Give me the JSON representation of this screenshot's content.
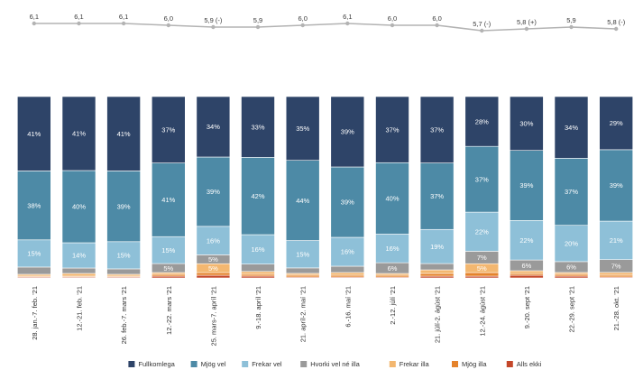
{
  "chart_data": [
    {
      "type": "line",
      "categories": [
        "28. jan.-7. feb. '21",
        "12.-21. feb. '21",
        "26. feb.-7. mars '21",
        "12.-22. mars '21",
        "25. mars-7. apríl '21",
        "9.-18. apríl '21",
        "21. apríl-2. maí '21",
        "6.-16. maí '21",
        "2.-12. júlí '21",
        "21. júlí-2. ágúst '21",
        "12.-24. ágúst '21",
        "9.-20. sept '21",
        "22.-29. sept '21",
        "21.-28. okt. '21"
      ],
      "values": [
        6.1,
        6.1,
        6.1,
        6.0,
        5.9,
        5.9,
        6.0,
        6.1,
        6.0,
        6.0,
        5.7,
        5.8,
        5.9,
        5.8
      ],
      "labels": [
        "6,1",
        "6,1",
        "6,1",
        "6,0",
        "5,9 (-)",
        "5,9",
        "6,0",
        "6,1",
        "6,0",
        "6,0",
        "5,7 (-)",
        "5,8 (+)",
        "5,9",
        "5,8 (-)"
      ],
      "ylim": [
        5.5,
        6.3
      ],
      "grid": false,
      "color": "#b3b3b3"
    },
    {
      "type": "bar",
      "stacked": true,
      "percent": true,
      "categories": [
        "28. jan.-7. feb. '21",
        "12.-21. feb. '21",
        "26. feb.-7. mars '21",
        "12.-22. mars '21",
        "25. mars-7. apríl '21",
        "9.-18. apríl '21",
        "21. apríl-2. maí '21",
        "6.-16. maí '21",
        "2.-12. júlí '21",
        "21. júlí-2. ágúst '21",
        "12.-24. ágúst '21",
        "9.-20. sept '21",
        "22.-29. sept '21",
        "21.-28. okt. '21"
      ],
      "ylim": [
        0,
        100
      ],
      "grid": false,
      "legend": "bottom",
      "series": [
        {
          "name": "Alls ekki",
          "color": "#c4472a",
          "values": [
            0.5,
            0.5,
            0.5,
            1,
            1.5,
            1,
            0.5,
            0.5,
            0.5,
            1,
            1,
            1.5,
            1,
            0.5
          ],
          "labels": [
            "",
            "",
            "",
            "",
            "",
            "",
            "",
            "",
            "",
            "",
            "",
            "",
            "",
            ""
          ]
        },
        {
          "name": "Mjög illa",
          "color": "#e5832b",
          "values": [
            0.5,
            0.5,
            0.5,
            1,
            1.5,
            1,
            1,
            1,
            1,
            1.5,
            2,
            1,
            1,
            1
          ],
          "labels": [
            "",
            "",
            "",
            "",
            "",
            "",
            "",
            "",
            "",
            "",
            "",
            "",
            "",
            ""
          ]
        },
        {
          "name": "Frekar illa",
          "color": "#f3b770",
          "values": [
            1,
            1.5,
            1,
            1,
            5,
            1.5,
            1,
            1.5,
            1,
            2,
            5,
            1.5,
            1,
            1.5
          ],
          "labels": [
            "",
            "",
            "",
            "",
            "5%",
            "",
            "",
            "",
            "",
            "",
            "5%",
            "",
            "",
            ""
          ]
        },
        {
          "name": "Hvorki vel né illa",
          "color": "#9a9a9a",
          "values": [
            4,
            3,
            3,
            5,
            5,
            4,
            3,
            3.5,
            6,
            3.5,
            7,
            6,
            6,
            7
          ],
          "labels": [
            "",
            "",
            "",
            "5%",
            "5%",
            "",
            "",
            "",
            "6%",
            "",
            "7%",
            "6%",
            "6%",
            "7%"
          ]
        },
        {
          "name": "Frekar vel",
          "color": "#8ec0d8",
          "values": [
            15,
            14,
            15,
            15,
            16,
            16,
            15,
            16,
            16,
            19,
            22,
            22,
            20,
            21
          ],
          "labels": [
            "15%",
            "14%",
            "15%",
            "15%",
            "16%",
            "16%",
            "15%",
            "16%",
            "16%",
            "19%",
            "22%",
            "22%",
            "20%",
            "21%"
          ]
        },
        {
          "name": "Mjög vel",
          "color": "#4d8aa6",
          "values": [
            38,
            40,
            39,
            41,
            39,
            42,
            44,
            39,
            40,
            37,
            37,
            39,
            37,
            39
          ],
          "labels": [
            "38%",
            "40%",
            "39%",
            "41%",
            "39%",
            "42%",
            "44%",
            "39%",
            "40%",
            "37%",
            "37%",
            "39%",
            "37%",
            "39%"
          ]
        },
        {
          "name": "Fullkomlega",
          "color": "#2e4468",
          "values": [
            41,
            41,
            41,
            37,
            34,
            33,
            35,
            39,
            37,
            37,
            28,
            30,
            34,
            29
          ],
          "labels": [
            "41%",
            "41%",
            "41%",
            "37%",
            "34%",
            "33%",
            "35%",
            "39%",
            "37%",
            "37%",
            "28%",
            "30%",
            "34%",
            "29%"
          ]
        }
      ],
      "legend_order": [
        "Fullkomlega",
        "Mjög vel",
        "Frekar vel",
        "Hvorki vel né illa",
        "Frekar illa",
        "Mjög illa",
        "Alls ekki"
      ]
    }
  ]
}
